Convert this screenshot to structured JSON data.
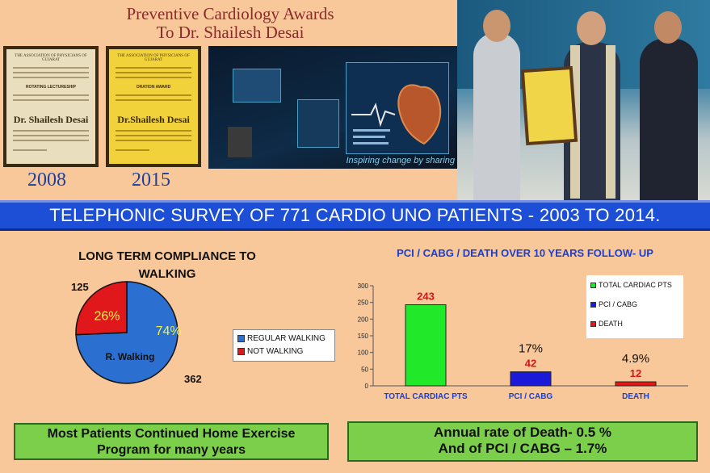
{
  "header": {
    "title_line1": "Preventive Cardiology Awards",
    "title_line2": "To Dr. Shailesh Desai"
  },
  "certificates": [
    {
      "year": "2008",
      "org": "THE ASSOCIATION OF PHYSICIANS OF GUJARAT",
      "award": "ROTATING LECTURESHIP",
      "name": "Dr. Shailesh Desai"
    },
    {
      "year": "2015",
      "org": "THE ASSOCIATION OF PHYSICIANS OF GUJARAT",
      "award": "ORATION AWARD",
      "name": "Dr.Shailesh Desai"
    }
  ],
  "stage": {
    "caption": "Inspiring change by sharing"
  },
  "banner": {
    "text": "TELEPHONIC SURVEY OF 771 CARDIO UNO PATIENTS - 2003 TO 2014."
  },
  "chart_data": [
    {
      "type": "pie",
      "title": "LONG TERM COMPLIANCE TO WALKING",
      "slices": [
        {
          "name": "REGULAR WALKING",
          "value": 362,
          "percent_label": "74%",
          "inner_label": "R. Walking",
          "color": "#2b6fd0"
        },
        {
          "name": "NOT WALKING",
          "value": 125,
          "percent_label": "26%",
          "color": "#e0181c"
        }
      ],
      "legend": "right"
    },
    {
      "type": "bar",
      "title": "PCI / CABG / DEATH OVER 10 YEARS FOLLOW- UP",
      "categories": [
        "TOTAL CARDIAC PTS",
        "PCI / CABG",
        "DEATH"
      ],
      "values": [
        243,
        42,
        12
      ],
      "value_labels": [
        "243",
        "42",
        "12"
      ],
      "percent_labels": [
        "",
        "17%",
        "4.9%"
      ],
      "colors": [
        "#22e82a",
        "#1a1ad8",
        "#e0181c"
      ],
      "ylim": [
        0,
        300
      ],
      "yticks": [
        "0",
        "50",
        "100",
        "150",
        "200",
        "250",
        "300"
      ],
      "legend": [
        "TOTAL CARDIAC PTS",
        "PCI / CABG",
        "DEATH"
      ]
    }
  ],
  "footer": {
    "left_line1": "Most Patients Continued Home Exercise",
    "left_line2": "Program  for many years",
    "right_line1": "Annual rate of  Death- 0.5 %",
    "right_line2": "And of  PCI / CABG – 1.7%"
  }
}
